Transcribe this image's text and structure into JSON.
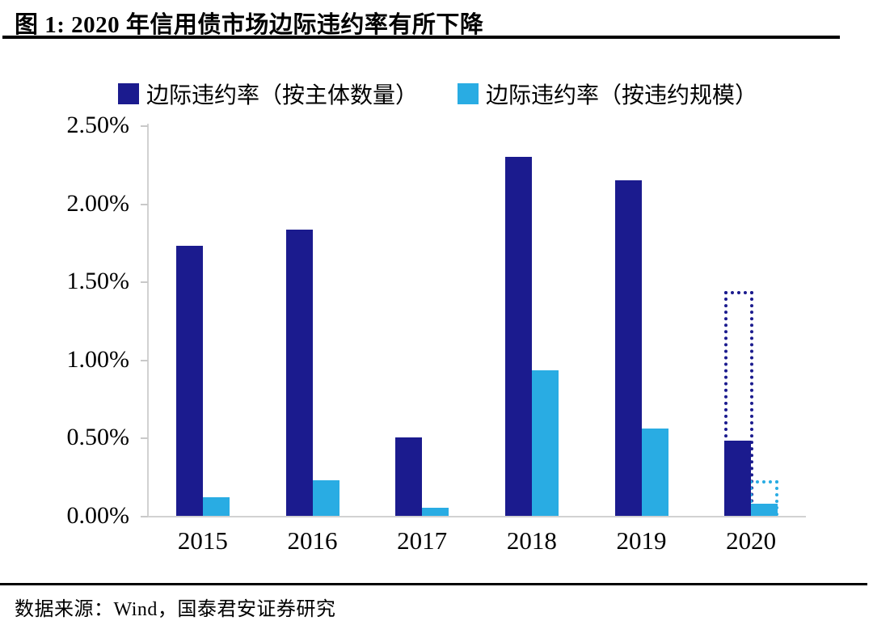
{
  "title": "图 1:  2020 年信用债市场边际违约率有所下降",
  "footer": {
    "source": "数据来源：Wind，国泰君安证券研究"
  },
  "colors": {
    "navy": "#1b1b8e",
    "cyan": "#29ace3",
    "axis_gray": "#d2d2d2",
    "rule_black": "#000000"
  },
  "chart_data": {
    "type": "bar",
    "title": "2020 年信用债市场边际违约率有所下降",
    "categories": [
      "2015",
      "2016",
      "2017",
      "2018",
      "2019",
      "2020"
    ],
    "series": [
      {
        "name": "边际违约率（按主体数量）",
        "color": "#1b1b8e",
        "values": [
          1.73,
          1.83,
          0.5,
          2.3,
          2.15,
          0.48
        ]
      },
      {
        "name": "边际违约率（按违约规模）",
        "color": "#29ace3",
        "values": [
          0.12,
          0.23,
          0.05,
          0.93,
          0.56,
          0.08
        ]
      }
    ],
    "dotted_overlays": [
      {
        "series_index": 0,
        "series": "边际违约率（按主体数量）",
        "category": "2020",
        "value": 1.44
      },
      {
        "series_index": 1,
        "series": "边际违约率（按违约规模）",
        "category": "2020",
        "value": 0.23
      }
    ],
    "y_ticks": [
      "2.50%",
      "2.00%",
      "1.50%",
      "1.00%",
      "0.50%",
      "0.00%"
    ],
    "y_tick_values": [
      2.5,
      2.0,
      1.5,
      1.0,
      0.5,
      0.0
    ],
    "ylim": [
      0,
      2.5
    ],
    "xlabel": "",
    "ylabel": "",
    "grid": false,
    "legend_position": "top"
  }
}
